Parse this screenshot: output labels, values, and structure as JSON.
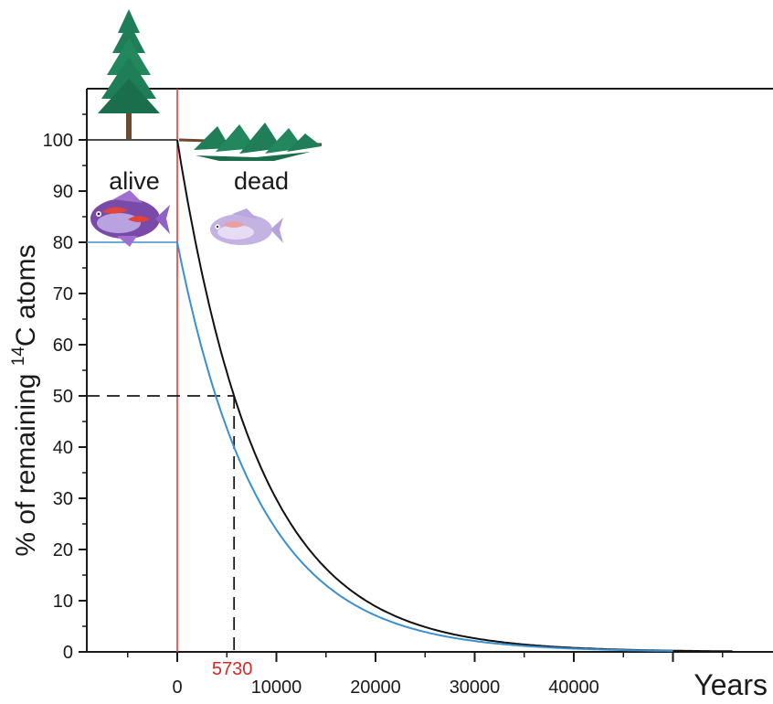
{
  "chart_data": {
    "type": "line",
    "xlabel": "Years",
    "ylabel_prefix": "% of remaining ",
    "ylabel_sup": "14",
    "ylabel_suffix": "C atoms",
    "xlim": [
      -9000,
      57000
    ],
    "ylim": [
      0,
      110
    ],
    "x_ticks": [
      0,
      10000,
      20000,
      30000,
      40000
    ],
    "x_tick_labels": [
      "0",
      "10000",
      "20000",
      "30000",
      "40000"
    ],
    "y_ticks": [
      0,
      10,
      20,
      30,
      40,
      50,
      60,
      70,
      80,
      90,
      100
    ],
    "y_tick_labels": [
      "0",
      "10",
      "20",
      "30",
      "40",
      "50",
      "60",
      "70",
      "80",
      "90",
      "100"
    ],
    "half_life": 5730,
    "half_life_label": "5730",
    "half_value": 50,
    "death_time": 0,
    "series": [
      {
        "start_percent": 100,
        "color": "#111111",
        "x_end": 56000
      },
      {
        "start_percent": 80,
        "color": "#3a8fd0",
        "x_end": 50000
      }
    ],
    "annotations": {
      "alive": "alive",
      "dead": "dead"
    },
    "colors": {
      "axis": "#1a1a1a",
      "death_line": "#e03c3c",
      "tree_green": "#1f7d57",
      "trunk": "#6b4a2e"
    },
    "icons": [
      "tree-alive-icon",
      "tree-dead-icon",
      "fish-alive-icon",
      "fish-dead-icon"
    ]
  }
}
